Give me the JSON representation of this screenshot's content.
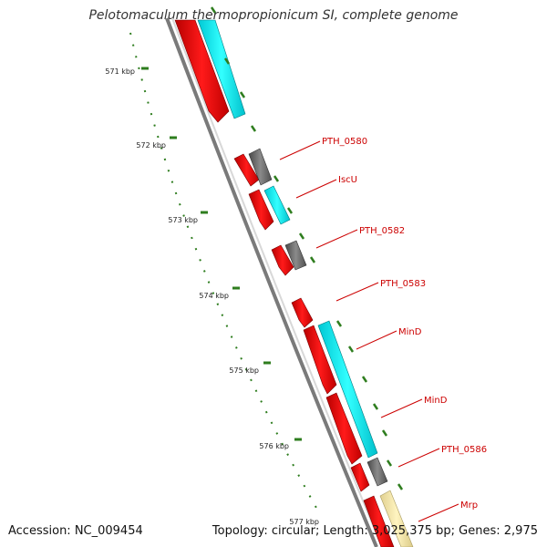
{
  "title": "Pelotomaculum thermopropionicum SI, complete genome",
  "footer": {
    "accession": "Accession: NC_009454",
    "topology": "Topology: circular; Length: 3,025,375 bp; Genes: 2,975"
  },
  "scale_labels": [
    "571 kbp",
    "572 kbp",
    "573 kbp",
    "574 kbp",
    "575 kbp",
    "576 kbp",
    "577 kbp"
  ],
  "gene_labels": [
    "PTH_0580",
    "IscU",
    "PTH_0582",
    "PTH_0583",
    "MinD",
    "MinD",
    "PTH_0586",
    "Mrp"
  ],
  "colors": {
    "cds": "#ff0000",
    "gc_skew_cyan": "#00ffff",
    "gray_feature": "#6b6b6b",
    "yellow_feature": "#f5e9a8",
    "tick_green": "#2e7d1e",
    "backbone": "#7a7a7a",
    "label_red": "#cc0000"
  }
}
